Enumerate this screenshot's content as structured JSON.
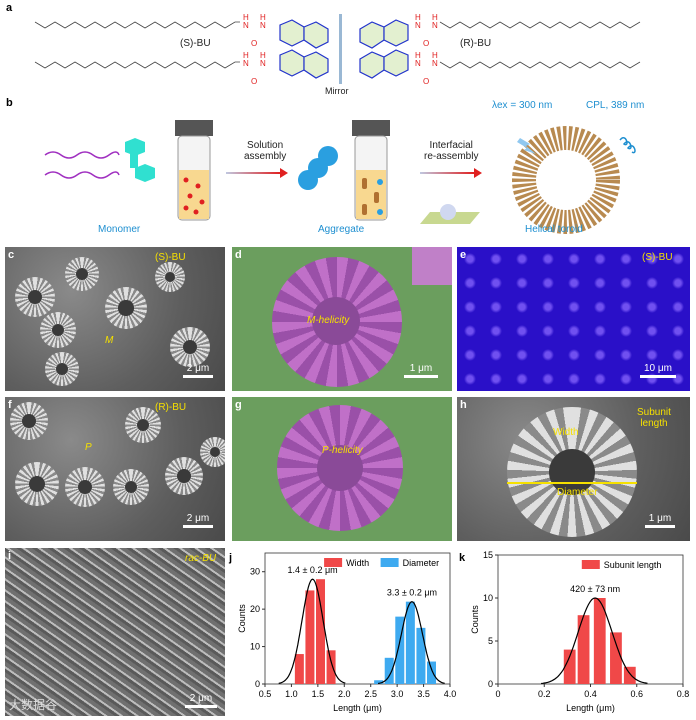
{
  "panels": {
    "a": {
      "label": "a",
      "s_name": "(S)-BU",
      "r_name": "(R)-BU",
      "mirror": "Mirror",
      "atoms": {
        "H": "H",
        "N": "N",
        "O": "O"
      }
    },
    "b": {
      "label": "b",
      "step1": "Solution\nassembly",
      "step1_a": "Solution",
      "step1_b": "assembly",
      "step2_a": "Interfacial",
      "step2_b": "re-assembly",
      "monomer": "Monomer",
      "aggregate": "Aggregate",
      "toroid": "Helical toroid",
      "excitation": "λex = 300 nm",
      "cpl": "CPL, 389 nm"
    },
    "c": {
      "label": "c",
      "tag": "(S)-BU",
      "helicity": "M",
      "scale": "2 μm"
    },
    "d": {
      "label": "d",
      "helicity": "M-helicity",
      "scale": "1 μm"
    },
    "e": {
      "label": "e",
      "tag": "(S)-BU",
      "scale": "10 μm"
    },
    "f": {
      "label": "f",
      "tag": "(R)-BU",
      "helicity": "P",
      "scale": "2 μm"
    },
    "g": {
      "label": "g",
      "helicity": "P-helicity"
    },
    "h": {
      "label": "h",
      "width": "Width",
      "subunit": "Subunit\nlength",
      "subunit_a": "Subunit",
      "subunit_b": "length",
      "diameter": "Diameter",
      "scale": "1 μm"
    },
    "i": {
      "label": "i",
      "tag": "rac-BU",
      "scale": "2 μm"
    },
    "j": {
      "label": "j"
    },
    "k": {
      "label": "k"
    }
  },
  "watermark": "大数据谷",
  "colors": {
    "width": "#f04848",
    "diameter": "#3eaaf0",
    "label_yellow": "#f5e000",
    "accent_blue": "#1e8fd0"
  },
  "chart_data": [
    {
      "type": "bar",
      "panel": "j",
      "xlabel": "Length (μm)",
      "ylabel": "Counts",
      "xlim": [
        0.5,
        4.0
      ],
      "ylim": [
        0,
        35
      ],
      "xticks": [
        "0.5",
        "1.0",
        "1.5",
        "2.0",
        "2.5",
        "3.0",
        "3.5",
        "4.0"
      ],
      "yticks": [
        "0",
        "10",
        "20",
        "30"
      ],
      "legend": "top-right",
      "series": [
        {
          "name": "Width",
          "color": "#f04848",
          "x": [
            1.15,
            1.35,
            1.55,
            1.75
          ],
          "values": [
            8,
            25,
            28,
            9
          ],
          "fit": {
            "mean": 1.4,
            "sd": 0.2,
            "peak": 28
          },
          "annotation": "1.4 ± 0.2 μm"
        },
        {
          "name": "Diameter",
          "color": "#3eaaf0",
          "x": [
            2.65,
            2.85,
            3.05,
            3.25,
            3.45,
            3.65
          ],
          "values": [
            1,
            7,
            18,
            22,
            15,
            6
          ],
          "fit": {
            "mean": 3.28,
            "sd": 0.2,
            "peak": 22
          },
          "annotation": "3.3 ± 0.2 μm"
        }
      ]
    },
    {
      "type": "bar",
      "panel": "k",
      "xlabel": "Length (μm)",
      "ylabel": "Counts",
      "xlim": [
        0,
        0.8
      ],
      "ylim": [
        0,
        15
      ],
      "xticks": [
        "0",
        "0.2",
        "0.4",
        "0.6",
        "0.8"
      ],
      "yticks": [
        "0",
        "5",
        "10",
        "15"
      ],
      "legend": "top-right",
      "series": [
        {
          "name": "Subunit length",
          "color": "#f04848",
          "x": [
            0.31,
            0.37,
            0.44,
            0.51,
            0.57
          ],
          "values": [
            4,
            8,
            10,
            6,
            2
          ],
          "fit": {
            "mean": 0.42,
            "sd": 0.073,
            "peak": 10
          },
          "annotation": "420 ± 73 nm"
        }
      ]
    }
  ]
}
